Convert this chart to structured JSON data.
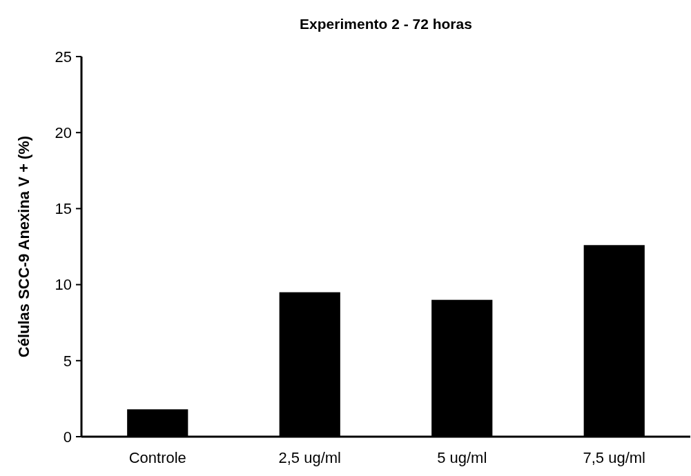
{
  "chart_data": {
    "type": "bar",
    "title": "Experimento 2 - 72 horas",
    "ylabel": "Células SCC-9  Anexina V + (%)",
    "categories": [
      "Controle",
      "2,5 ug/ml",
      "5 ug/ml",
      "7,5 ug/ml"
    ],
    "values": [
      1.8,
      9.5,
      9.0,
      12.6
    ],
    "color": "#000000",
    "ylim": [
      0,
      25
    ],
    "yticks": [
      0,
      5,
      10,
      15,
      20,
      25
    ],
    "grid": false
  }
}
